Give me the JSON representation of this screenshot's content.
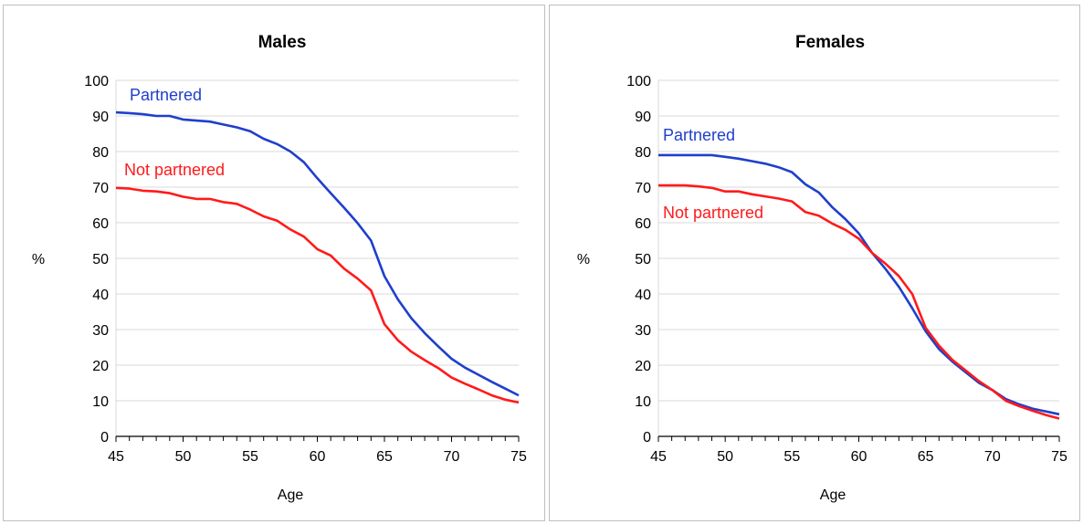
{
  "chart_data": [
    {
      "type": "line",
      "title": "Males",
      "xlabel": "Age",
      "ylabel": "%",
      "xlim": [
        45,
        75
      ],
      "ylim": [
        0,
        100
      ],
      "xticks": [
        45,
        50,
        55,
        60,
        65,
        70,
        75
      ],
      "yticks": [
        0,
        10,
        20,
        30,
        40,
        50,
        60,
        70,
        80,
        90,
        100
      ],
      "grid": true,
      "x": [
        45,
        46,
        47,
        48,
        49,
        50,
        51,
        52,
        53,
        54,
        55,
        56,
        57,
        58,
        59,
        60,
        61,
        62,
        63,
        64,
        65,
        66,
        67,
        68,
        69,
        70,
        71,
        72,
        73,
        74,
        75
      ],
      "series": [
        {
          "name": "Partnered",
          "color": "#1f3fcc",
          "values": [
            91,
            90.8,
            90.5,
            90,
            90,
            89,
            88.7,
            88.4,
            87.6,
            86.8,
            85.7,
            83.6,
            82.1,
            80,
            77,
            72.5,
            68.3,
            64.2,
            59.9,
            55,
            45,
            38.5,
            33.2,
            29,
            25.3,
            21.8,
            19.3,
            17.3,
            15.3,
            13.4,
            11.5
          ]
        },
        {
          "name": "Not partnered",
          "color": "#ff1a1a",
          "values": [
            69.8,
            69.6,
            69,
            68.8,
            68.3,
            67.3,
            66.7,
            66.7,
            65.8,
            65.3,
            63.7,
            61.8,
            60.6,
            58.1,
            56.1,
            52.6,
            50.8,
            47.1,
            44.3,
            41,
            31.5,
            27,
            23.8,
            21.4,
            19.2,
            16.5,
            14.8,
            13.2,
            11.5,
            10.3,
            9.5
          ]
        }
      ]
    },
    {
      "type": "line",
      "title": "Females",
      "xlabel": "Age",
      "ylabel": "%",
      "xlim": [
        45,
        75
      ],
      "ylim": [
        0,
        100
      ],
      "xticks": [
        45,
        50,
        55,
        60,
        65,
        70,
        75
      ],
      "yticks": [
        0,
        10,
        20,
        30,
        40,
        50,
        60,
        70,
        80,
        90,
        100
      ],
      "grid": true,
      "x": [
        45,
        46,
        47,
        48,
        49,
        50,
        51,
        52,
        53,
        54,
        55,
        56,
        57,
        58,
        59,
        60,
        61,
        62,
        63,
        64,
        65,
        66,
        67,
        68,
        69,
        70,
        71,
        72,
        73,
        74,
        75
      ],
      "series": [
        {
          "name": "Partnered",
          "color": "#1f3fcc",
          "values": [
            79,
            79,
            79,
            79,
            79,
            78.5,
            78,
            77.3,
            76.6,
            75.6,
            74.2,
            70.8,
            68.5,
            64.4,
            61,
            57,
            51.5,
            47,
            42,
            36,
            29.5,
            24.5,
            21,
            18,
            15,
            13,
            10.5,
            9,
            7.8,
            7,
            6.2
          ]
        },
        {
          "name": "Not partnered",
          "color": "#ff1a1a",
          "values": [
            70.5,
            70.5,
            70.5,
            70.2,
            69.8,
            68.8,
            68.8,
            68,
            67.4,
            66.8,
            66,
            63,
            62,
            59.8,
            58,
            55.5,
            51.5,
            48.5,
            45,
            40,
            30.5,
            25.5,
            21.5,
            18.5,
            15.5,
            13,
            10,
            8.5,
            7.2,
            6,
            5
          ]
        }
      ]
    }
  ]
}
